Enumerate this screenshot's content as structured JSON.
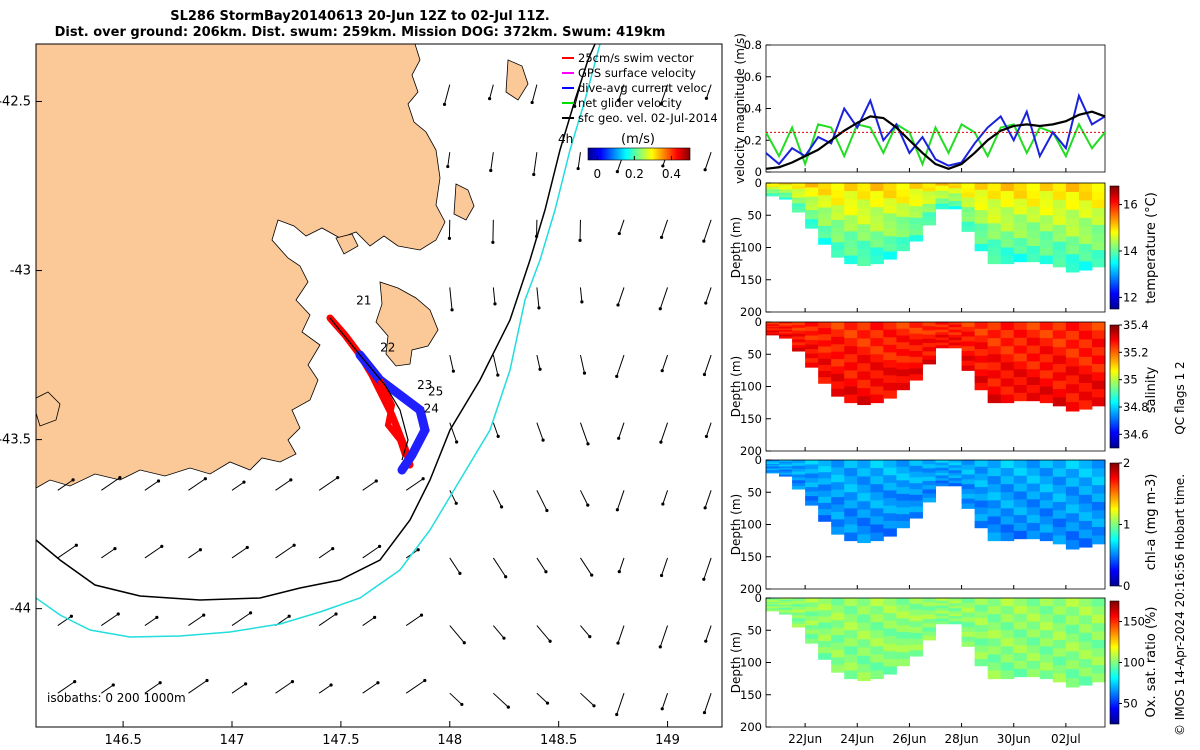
{
  "title": {
    "line1": "SL286 StormBay20140613 20-Jun 12Z to 02-Jul 11Z.",
    "line2": "Dist. over ground: 206km. Dist. swum: 259km. Mission DOG: 372km. Swum: 419km"
  },
  "map": {
    "lon_ticks": [
      146.5,
      147,
      147.5,
      148,
      148.5,
      149
    ],
    "lat_ticks": [
      -42.5,
      -43,
      -43.5,
      -44
    ],
    "lon_range": [
      146.1,
      149.25
    ],
    "lat_range": [
      -44.35,
      -42.33
    ],
    "legend": [
      {
        "label": "25cm/s swim vector",
        "color": "#ff0000"
      },
      {
        "label": "GPS surface velocity",
        "color": "#ff00ff"
      },
      {
        "label": "dive-avg current veloc.",
        "color": "#0000ff"
      },
      {
        "label": "net glider velocity",
        "color": "#00dd00"
      },
      {
        "label": "sfc geo. vel. 02-Jul-2014",
        "color": "#000000"
      }
    ],
    "colorbar": {
      "unit": "(m/s)",
      "ticks": [
        "0",
        "0.2",
        "0.4"
      ],
      "range": [
        -0.05,
        0.5
      ],
      "label_4h": "4h"
    },
    "isobath_note": "isobaths: 0   200  1000m",
    "day_labels": [
      {
        "text": "21",
        "lon": 147.57,
        "lat": -43.1
      },
      {
        "text": "22",
        "lon": 147.68,
        "lat": -43.24
      },
      {
        "text": "25",
        "lon": 147.9,
        "lat": -43.37
      },
      {
        "text": "24",
        "lon": 147.88,
        "lat": -43.42
      },
      {
        "text": "23",
        "lon": 147.85,
        "lat": -43.35
      }
    ]
  },
  "chart_data": [
    {
      "type": "line",
      "ylabel": "velocity magnitude (m/s)",
      "ylim": [
        0,
        0.8
      ],
      "yticks": [
        0,
        0.2,
        0.4,
        0.6,
        0.8
      ],
      "xlim_days": [
        20.5,
        33.5
      ],
      "series": [
        {
          "name": "net glider velocity",
          "color": "#22dd22",
          "x": [
            20.5,
            21,
            21.5,
            22,
            22.5,
            23,
            23.5,
            24,
            24.5,
            25,
            25.5,
            26,
            26.5,
            27,
            27.5,
            28,
            28.5,
            29,
            29.5,
            30,
            30.5,
            31,
            31.5,
            32,
            32.5,
            33,
            33.5
          ],
          "y": [
            0.25,
            0.1,
            0.28,
            0.05,
            0.3,
            0.28,
            0.1,
            0.3,
            0.28,
            0.12,
            0.3,
            0.25,
            0.05,
            0.28,
            0.12,
            0.3,
            0.25,
            0.1,
            0.28,
            0.3,
            0.12,
            0.28,
            0.25,
            0.1,
            0.3,
            0.15,
            0.25
          ]
        },
        {
          "name": "dive-avg current veloc.",
          "color": "#1a22dd",
          "x": [
            20.5,
            21,
            21.5,
            22,
            22.5,
            23,
            23.5,
            24,
            24.5,
            25,
            25.5,
            26,
            26.5,
            27,
            27.5,
            28,
            28.5,
            29,
            29.5,
            30,
            30.5,
            31,
            31.5,
            32,
            32.5,
            33,
            33.5
          ],
          "y": [
            0.12,
            0.05,
            0.15,
            0.1,
            0.22,
            0.18,
            0.4,
            0.28,
            0.45,
            0.2,
            0.3,
            0.12,
            0.22,
            0.08,
            0.04,
            0.06,
            0.18,
            0.28,
            0.35,
            0.2,
            0.38,
            0.1,
            0.25,
            0.15,
            0.48,
            0.3,
            0.35
          ]
        },
        {
          "name": "speed",
          "color": "#000000",
          "x": [
            20.5,
            21,
            21.5,
            22,
            22.5,
            23,
            23.5,
            24,
            24.5,
            25,
            25.5,
            26,
            26.5,
            27,
            27.5,
            28,
            28.5,
            29,
            29.5,
            30,
            30.5,
            31,
            31.5,
            32,
            32.5,
            33,
            33.5
          ],
          "y": [
            0.02,
            0.03,
            0.06,
            0.1,
            0.14,
            0.2,
            0.26,
            0.31,
            0.35,
            0.34,
            0.28,
            0.2,
            0.12,
            0.05,
            0.02,
            0.05,
            0.12,
            0.2,
            0.26,
            0.29,
            0.3,
            0.29,
            0.3,
            0.32,
            0.36,
            0.38,
            0.35
          ]
        },
        {
          "name": "25cm/s swim vector",
          "color": "#dd0000",
          "x": [
            20.5,
            33.5
          ],
          "y": [
            0.25,
            0.25
          ]
        }
      ]
    },
    {
      "type": "heatmap",
      "variable": "temperature",
      "label": "temperature (°C)",
      "clim": [
        11.5,
        16.8
      ],
      "cticks": [
        12,
        14,
        16
      ],
      "yticks": [
        0,
        50,
        100,
        150,
        200
      ],
      "x_days": [
        20.5,
        21,
        21.5,
        22,
        22.5,
        23,
        23.5,
        24,
        24.5,
        25,
        25.5,
        26,
        26.5,
        27,
        27.5,
        28,
        28.5,
        29,
        29.5,
        30,
        30.5,
        31,
        31.5,
        32,
        32.5,
        33,
        33.5
      ],
      "max_depth": [
        20,
        25,
        45,
        70,
        95,
        115,
        125,
        128,
        128,
        125,
        118,
        105,
        90,
        65,
        40,
        75,
        105,
        125,
        125,
        125,
        122,
        125,
        130,
        138,
        140,
        135,
        130
      ],
      "surface_value": 15.0,
      "deep_value": 13.6
    },
    {
      "type": "heatmap",
      "variable": "salinity",
      "label": "salinity",
      "clim": [
        34.5,
        35.4
      ],
      "cticks": [
        34.6,
        34.8,
        35,
        35.2,
        35.4
      ],
      "yticks": [
        0,
        50,
        100,
        150,
        200
      ],
      "x_days": [
        20.5,
        21,
        21.5,
        22,
        22.5,
        23,
        23.5,
        24,
        24.5,
        25,
        25.5,
        26,
        26.5,
        27,
        27.5,
        28,
        28.5,
        29,
        29.5,
        30,
        30.5,
        31,
        31.5,
        32,
        32.5,
        33,
        33.5
      ],
      "max_depth": [
        20,
        25,
        45,
        70,
        95,
        115,
        125,
        128,
        128,
        125,
        118,
        105,
        90,
        65,
        40,
        75,
        105,
        125,
        125,
        125,
        122,
        125,
        130,
        138,
        140,
        135,
        130
      ],
      "surface_value": 35.25,
      "deep_value": 35.3
    },
    {
      "type": "heatmap",
      "variable": "chl-a",
      "label": "chl-a (mg m-3)",
      "clim": [
        0,
        2
      ],
      "cticks": [
        0,
        1,
        2
      ],
      "yticks": [
        0,
        50,
        100,
        150,
        200
      ],
      "x_days": [
        20.5,
        21,
        21.5,
        22,
        22.5,
        23,
        23.5,
        24,
        24.5,
        25,
        25.5,
        26,
        26.5,
        27,
        27.5,
        28,
        28.5,
        29,
        29.5,
        30,
        30.5,
        31,
        31.5,
        32,
        32.5,
        33,
        33.5
      ],
      "max_depth": [
        20,
        25,
        45,
        70,
        95,
        115,
        125,
        128,
        128,
        125,
        118,
        105,
        90,
        65,
        40,
        75,
        105,
        125,
        125,
        125,
        122,
        125,
        130,
        138,
        140,
        135,
        130
      ],
      "surface_value": 0.6,
      "deep_value": 0.5
    },
    {
      "type": "heatmap",
      "variable": "oxygen",
      "label": "Ox. sat. ratio (%)",
      "clim": [
        25,
        175
      ],
      "cticks": [
        50,
        100,
        150
      ],
      "yticks": [
        0,
        50,
        100,
        150,
        200
      ],
      "x_days": [
        20.5,
        21,
        21.5,
        22,
        22.5,
        23,
        23.5,
        24,
        24.5,
        25,
        25.5,
        26,
        26.5,
        27,
        27.5,
        28,
        28.5,
        29,
        29.5,
        30,
        30.5,
        31,
        31.5,
        32,
        32.5,
        33,
        33.5
      ],
      "max_depth": [
        20,
        25,
        45,
        70,
        95,
        115,
        125,
        128,
        128,
        125,
        118,
        105,
        90,
        65,
        40,
        75,
        105,
        125,
        125,
        125,
        122,
        125,
        130,
        138,
        140,
        135,
        130
      ],
      "surface_value": 103,
      "deep_value": 100
    }
  ],
  "time_axis": {
    "ticks": [
      {
        "day": 22,
        "label": "22Jun"
      },
      {
        "day": 24,
        "label": "24Jun"
      },
      {
        "day": 26,
        "label": "26Jun"
      },
      {
        "day": 28,
        "label": "28Jun"
      },
      {
        "day": 30,
        "label": "30Jun"
      },
      {
        "day": 32,
        "label": "02Jul"
      }
    ]
  },
  "axis_labels": {
    "depth": "Depth (m)",
    "salinity_qc": "salinity",
    "qc_flags": "QC flags 1  2"
  },
  "credit": "© IMOS 14-Apr-2024 20:16:56 Hobart time."
}
